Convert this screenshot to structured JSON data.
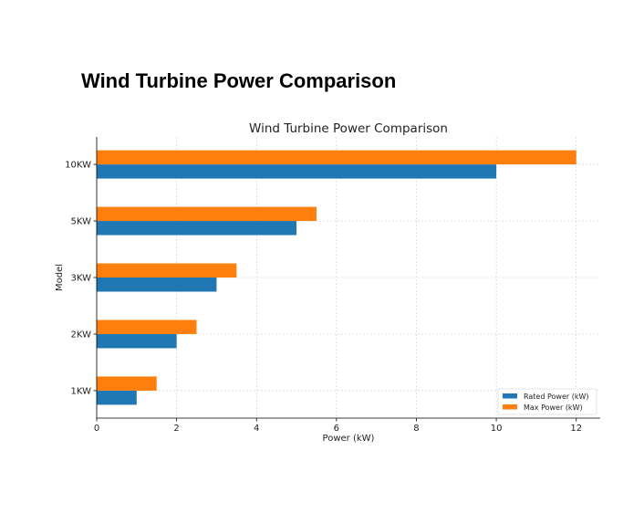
{
  "page_title": "Wind Turbine Power Comparison",
  "chart_data": {
    "type": "bar",
    "orientation": "horizontal",
    "title": "Wind Turbine Power Comparison",
    "xlabel": "Power (kW)",
    "ylabel": "Model",
    "categories": [
      "1KW",
      "2KW",
      "3KW",
      "5KW",
      "10KW"
    ],
    "series": [
      {
        "name": "Rated Power (kW)",
        "values": [
          1,
          2,
          3,
          5,
          10
        ],
        "color": "#1f77b4"
      },
      {
        "name": "Max Power (kW)",
        "values": [
          1.5,
          2.5,
          3.5,
          5.5,
          12
        ],
        "color": "#ff7f0e"
      }
    ],
    "xlim": [
      0,
      12.6
    ],
    "xticks": [
      0,
      2,
      4,
      6,
      8,
      10,
      12
    ],
    "grid": true,
    "legend_position": "lower-right"
  }
}
